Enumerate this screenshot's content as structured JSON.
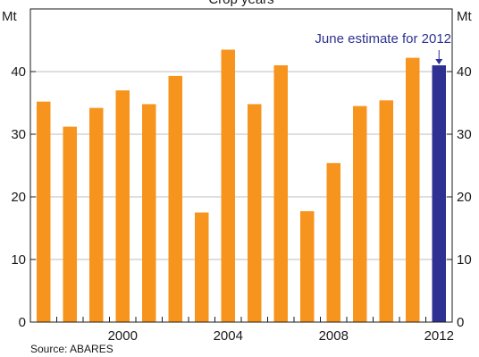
{
  "chart_data": {
    "type": "bar",
    "title": "",
    "partial_top_text": "Crop years",
    "unit_left": "Mt",
    "unit_right": "Mt",
    "x": [
      1997,
      1998,
      1999,
      2000,
      2001,
      2002,
      2003,
      2004,
      2005,
      2006,
      2007,
      2008,
      2009,
      2010,
      2011,
      2012
    ],
    "values": [
      35.2,
      31.2,
      34.2,
      37.0,
      34.8,
      39.3,
      17.5,
      43.5,
      34.8,
      41.0,
      17.7,
      25.4,
      34.5,
      35.4,
      42.2,
      41.0
    ],
    "highlight_index": 15,
    "colors": {
      "bar": "#f7941d",
      "highlight": "#2e3192",
      "axis": "#1a1a1a",
      "grid": "#bdbdbd",
      "annotation": "#2e3192"
    },
    "y_ticks": [
      "0",
      "10",
      "20",
      "30",
      "40"
    ],
    "y_tick_values": [
      0,
      10,
      20,
      30,
      40
    ],
    "ylim": [
      0,
      50
    ],
    "x_tick_labels": [
      "2000",
      "2004",
      "2008",
      "2012"
    ],
    "x_tick_years": [
      2000,
      2004,
      2008,
      2012
    ],
    "annotation": "June estimate for 2012",
    "grid": true,
    "source": "Source: ABARES"
  }
}
